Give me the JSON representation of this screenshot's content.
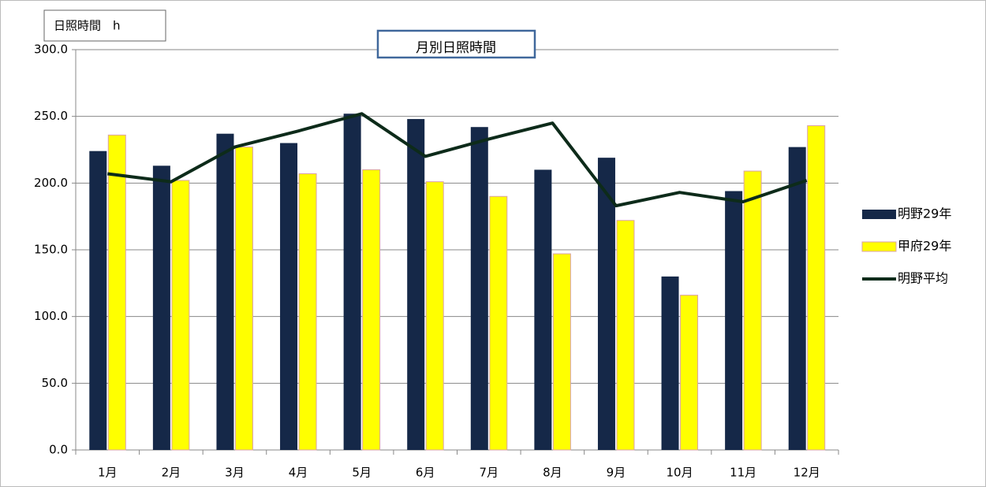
{
  "chart_data": {
    "type": "bar-line",
    "title": "月別日照時間",
    "y_label": "日照時間　h",
    "categories": [
      "1月",
      "2月",
      "3月",
      "4月",
      "5月",
      "6月",
      "7月",
      "8月",
      "9月",
      "10月",
      "11月",
      "12月"
    ],
    "series": [
      {
        "name": "明野29年",
        "type": "bar",
        "color": "#152848",
        "values": [
          224,
          213,
          237,
          230,
          252,
          248,
          242,
          210,
          219,
          130,
          194,
          227
        ]
      },
      {
        "name": "甲府29年",
        "type": "bar",
        "color": "#ffff00",
        "values": [
          236,
          202,
          227,
          207,
          210,
          201,
          190,
          147,
          172,
          116,
          209,
          243
        ]
      },
      {
        "name": "明野平均",
        "type": "line",
        "color": "#0d2b1a",
        "values": [
          207,
          201,
          227,
          239,
          252,
          220,
          233,
          245,
          183,
          193,
          186,
          202
        ]
      }
    ],
    "ylim": [
      0,
      300
    ],
    "yticks": [
      {
        "value": 0,
        "label": "0.0"
      },
      {
        "value": 50,
        "label": "50.0"
      },
      {
        "value": 100,
        "label": "100.0"
      },
      {
        "value": 150,
        "label": "150.0"
      },
      {
        "value": 200,
        "label": "200.0"
      },
      {
        "value": 250,
        "label": "250.0"
      },
      {
        "value": 300,
        "label": "300.0"
      }
    ],
    "grid": true,
    "legend": "right"
  }
}
